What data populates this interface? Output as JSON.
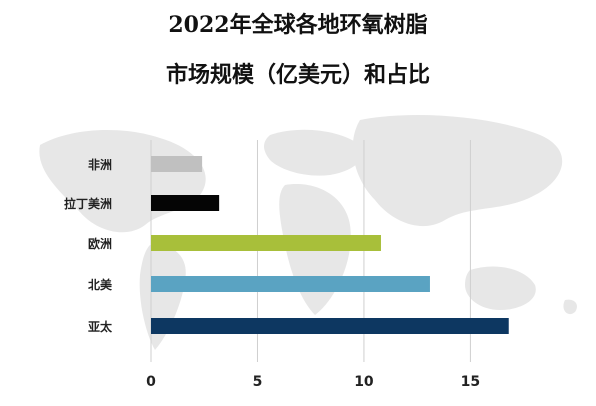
{
  "chart_data": {
    "type": "bar",
    "orientation": "horizontal",
    "title_lines": [
      "2022年全球各地环氧树脂",
      "市场规模（亿美元）和占比"
    ],
    "categories": [
      "非洲",
      "拉丁美洲",
      "欧洲",
      "北美",
      "亚太"
    ],
    "values": [
      2.4,
      3.2,
      10.8,
      13.1,
      16.8
    ],
    "colors": [
      "#c0c0c0",
      "#050505",
      "#a8bf3a",
      "#5aa3c2",
      "#0d3761"
    ],
    "xlim": [
      0,
      17
    ],
    "x_ticks": [
      0,
      5,
      10,
      15
    ],
    "grid": true,
    "legend": "none",
    "background": "world map watermark"
  }
}
